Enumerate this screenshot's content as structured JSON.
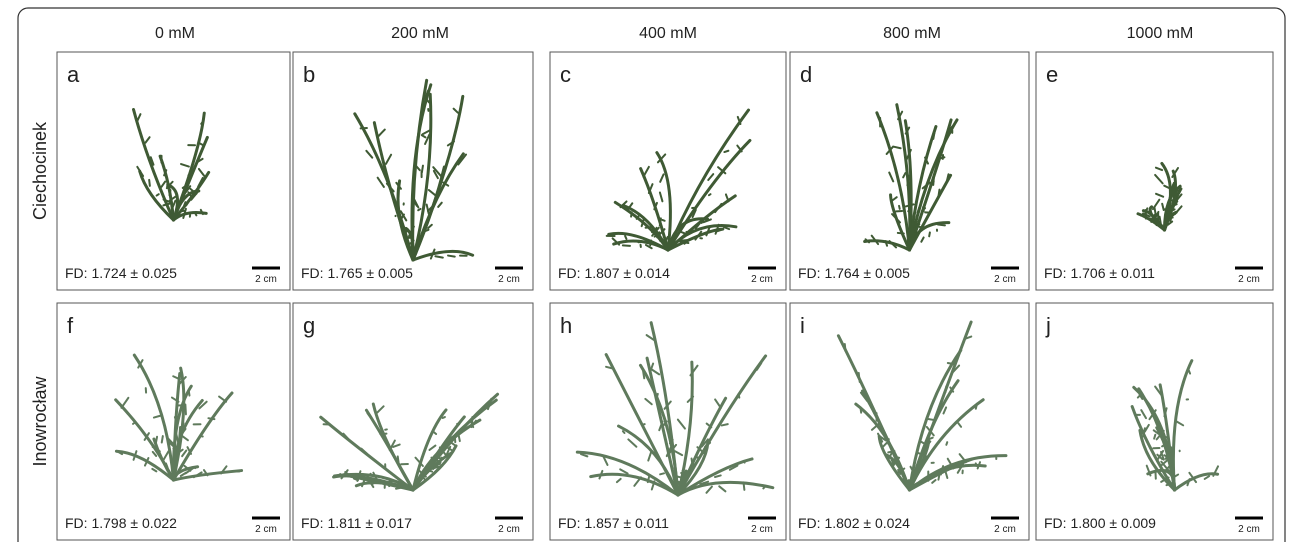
{
  "columns": [
    "0 mM",
    "200 mM",
    "400 mM",
    "800 mM",
    "1000 mM"
  ],
  "rows": [
    {
      "label": "Ciechocinek",
      "panels": [
        {
          "letter": "a",
          "fd": "FD: 1.724 ± 0.025",
          "scale": "2 cm"
        },
        {
          "letter": "b",
          "fd": "FD: 1.765 ± 0.005",
          "scale": "2 cm"
        },
        {
          "letter": "c",
          "fd": "FD: 1.807 ± 0.014",
          "scale": "2 cm"
        },
        {
          "letter": "d",
          "fd": "FD: 1.764 ± 0.005",
          "scale": "2 cm"
        },
        {
          "letter": "e",
          "fd": "FD: 1.706 ± 0.011",
          "scale": "2 cm"
        }
      ]
    },
    {
      "label": "Inowrocław",
      "panels": [
        {
          "letter": "f",
          "fd": "FD: 1.798 ± 0.022",
          "scale": "2 cm"
        },
        {
          "letter": "g",
          "fd": "FD: 1.811 ± 0.017",
          "scale": "2 cm"
        },
        {
          "letter": "h",
          "fd": "FD: 1.857 ± 0.011",
          "scale": "2 cm"
        },
        {
          "letter": "i",
          "fd": "FD: 1.802 ± 0.024",
          "scale": "2 cm"
        },
        {
          "letter": "j",
          "fd": "FD: 1.800 ± 0.009",
          "scale": "2 cm"
        }
      ]
    }
  ]
}
